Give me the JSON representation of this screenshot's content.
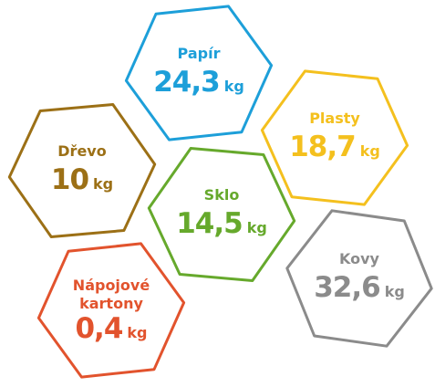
{
  "items": [
    {
      "label": "Papír",
      "value": "24,3",
      "unit": "kg",
      "color": "#1d9fd9"
    },
    {
      "label": "Plasty",
      "value": "18,7",
      "unit": "kg",
      "color": "#f4c01e"
    },
    {
      "label": "Dřevo",
      "value": "10",
      "unit": "kg",
      "color": "#9c7016"
    },
    {
      "label": "Sklo",
      "value": "14,5",
      "unit": "kg",
      "color": "#66a92c"
    },
    {
      "label": "Kovy",
      "value": "32,6",
      "unit": "kg",
      "color": "#8b8b8b"
    },
    {
      "label": [
        "Nápojové",
        "kartony"
      ],
      "value": "0,4",
      "unit": "kg",
      "color": "#e2532d"
    }
  ]
}
